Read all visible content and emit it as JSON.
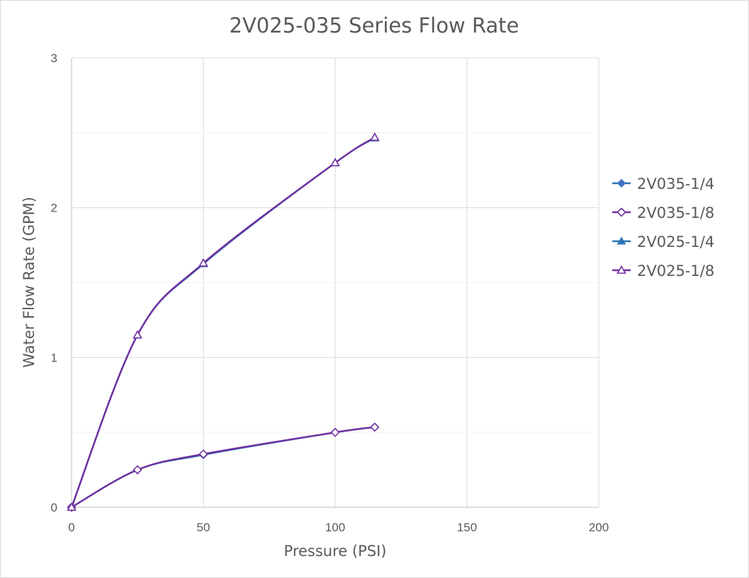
{
  "chart_data": {
    "type": "scatter",
    "title": "2V025-035 Series Flow Rate",
    "xlabel": "Pressure (PSI)",
    "ylabel": "Water Flow Rate (GPM)",
    "xlim": [
      0,
      200
    ],
    "ylim": [
      0,
      3
    ],
    "x_ticks": [
      0,
      50,
      100,
      150,
      200
    ],
    "y_ticks": [
      0,
      1,
      2,
      3
    ],
    "grid": true,
    "smooth_lines": true,
    "legend_position": "right",
    "series": [
      {
        "name": "2V035-1/4",
        "marker": "diamond-filled",
        "line_color": "#2e75b6",
        "marker_color": "#4472c4",
        "x": [
          0,
          25,
          50,
          100,
          115
        ],
        "y": [
          0,
          0.25,
          0.35,
          0.5,
          0.535
        ]
      },
      {
        "name": "2V035-1/8",
        "marker": "diamond-open",
        "line_color": "#7030a0",
        "marker_color": "#7030a0",
        "x": [
          0,
          25,
          50,
          100,
          115
        ],
        "y": [
          0,
          0.25,
          0.355,
          0.5,
          0.535
        ]
      },
      {
        "name": "2V025-1/4",
        "marker": "triangle-filled",
        "line_color": "#2e75b6",
        "marker_color": "#2e75b6",
        "x": [
          0,
          25,
          50,
          100,
          115
        ],
        "y": [
          0,
          1.15,
          1.625,
          2.3,
          2.465
        ]
      },
      {
        "name": "2V025-1/8",
        "marker": "triangle-open",
        "line_color": "#7030a0",
        "marker_color": "#7030a0",
        "x": [
          0,
          25,
          50,
          100,
          115
        ],
        "y": [
          0,
          1.15,
          1.63,
          2.3,
          2.47
        ]
      }
    ]
  }
}
